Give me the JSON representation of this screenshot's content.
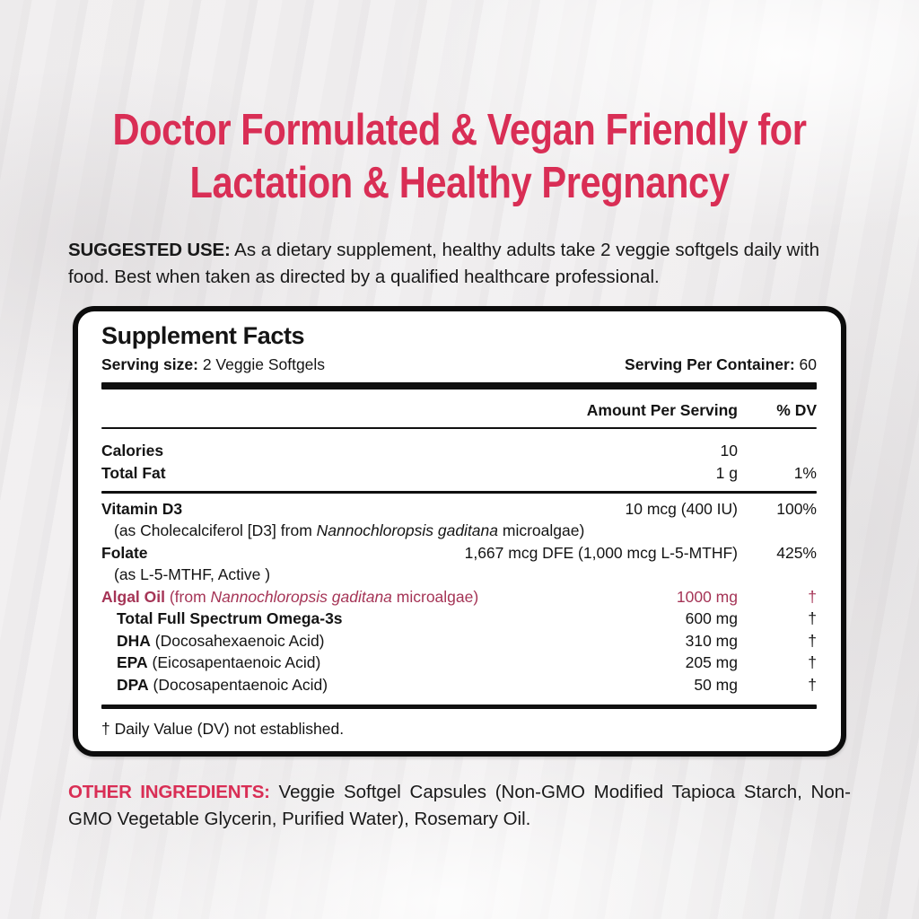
{
  "colors": {
    "accent_pink": "#d92e55",
    "accent_crimson": "#a53456",
    "panel_border": "#0c0c0c",
    "background": "#eceaeb"
  },
  "headline": {
    "line1": "Doctor Formulated & Vegan Friendly for",
    "line2": "Lactation & Healthy Pregnancy"
  },
  "suggested_use": {
    "label": "SUGGESTED USE:",
    "text": " As a dietary supplement, healthy adults take 2 veggie softgels daily with food. Best when taken as directed by a qualified healthcare professional."
  },
  "supplement_facts": {
    "title": "Supplement Facts",
    "serving_size": {
      "label": "Serving size:",
      "value": " 2 Veggie Softgels"
    },
    "servings_per_container": {
      "label": "Serving Per Container:",
      "value": " 60"
    },
    "columns": {
      "amount": "Amount Per Serving",
      "dv": "% DV"
    },
    "rows": {
      "calories": {
        "name": "Calories",
        "amount": "10",
        "dv": ""
      },
      "total_fat": {
        "name": "Total Fat",
        "amount": "1 g",
        "dv": "1%"
      },
      "vitamin_d3": {
        "name": "Vitamin D3",
        "amount": "10 mcg (400 IU)",
        "dv": "100%",
        "sub_pre": "(as Cholecalciferol [D3] from ",
        "sub_italic": "Nannochloropsis gaditana",
        "sub_post": " microalgae)"
      },
      "folate": {
        "name": "Folate",
        "amount": "1,667 mcg DFE (1,000 mcg L-5-MTHF)",
        "dv": "425%",
        "sub": "(as L-5-MTHF, Active )"
      },
      "algal_oil": {
        "name": "Algal Oil",
        "paren_pre": " (from ",
        "paren_italic": "Nannochloropsis gaditana",
        "paren_post": " microalgae)",
        "amount": "1000 mg",
        "dv": "†"
      },
      "omega3s": {
        "name": "Total Full Spectrum Omega-3s",
        "amount": "600 mg",
        "dv": "†"
      },
      "dha": {
        "name": "DHA",
        "paren": " (Docosahexaenoic Acid)",
        "amount": "310 mg",
        "dv": "†"
      },
      "epa": {
        "name": "EPA",
        "paren": " (Eicosapentaenoic Acid)",
        "amount": "205 mg",
        "dv": "†"
      },
      "dpa": {
        "name": "DPA",
        "paren": " (Docosapentaenoic Acid)",
        "amount": "50 mg",
        "dv": "†"
      }
    },
    "footnote": "† Daily Value (DV) not established."
  },
  "other_ingredients": {
    "label": "OTHER INGREDIENTS:",
    "text": " Veggie Softgel Capsules (Non-GMO Modified Tapioca Starch, Non-GMO Vegetable Glycerin, Purified Water), Rosemary Oil."
  }
}
